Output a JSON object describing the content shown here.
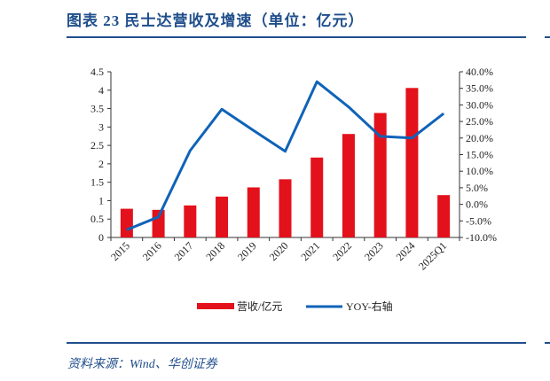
{
  "header": {
    "title": "图表 23   民士达营收及增速（单位：亿元）"
  },
  "footer": {
    "source": "资料来源：Wind、华创证券"
  },
  "colors": {
    "bar": "#e3111b",
    "line": "#0f63b8",
    "rule": "#1f4e8c"
  },
  "chart_data": {
    "type": "bar+line",
    "title": "",
    "categories": [
      "2015",
      "2016",
      "2017",
      "2018",
      "2019",
      "2020",
      "2021",
      "2022",
      "2023",
      "2024",
      "2025Q1"
    ],
    "series": [
      {
        "name": "营收/亿元",
        "type": "bar",
        "axis": "left",
        "values": [
          0.78,
          0.75,
          0.87,
          1.11,
          1.36,
          1.58,
          2.17,
          2.81,
          3.38,
          4.06,
          1.15
        ]
      },
      {
        "name": "YOY-右轴",
        "type": "line",
        "axis": "right",
        "values": [
          -7.7,
          -3.8,
          16.2,
          28.7,
          22.3,
          16.0,
          37.0,
          29.4,
          20.5,
          20.0,
          27.4
        ]
      }
    ],
    "left_axis": {
      "ylim": [
        0,
        4.5
      ],
      "ticks": [
        "0",
        "0.5",
        "1",
        "1.5",
        "2",
        "2.5",
        "3",
        "3.5",
        "4",
        "4.5"
      ]
    },
    "right_axis": {
      "ylim": [
        -10,
        40
      ],
      "ticks": [
        "-10.0%",
        "-5.0%",
        "0.0%",
        "5.0%",
        "10.0%",
        "15.0%",
        "20.0%",
        "25.0%",
        "30.0%",
        "35.0%",
        "40.0%"
      ]
    },
    "grid": false,
    "legend": "bottom"
  }
}
